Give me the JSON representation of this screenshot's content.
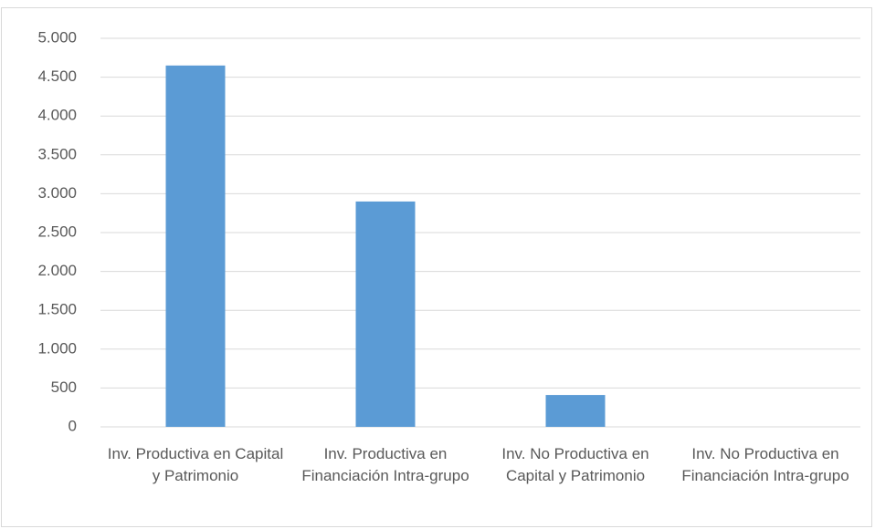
{
  "chart_data": {
    "type": "bar",
    "categories": [
      "Inv. Productiva en Capital y Patrimonio",
      "Inv. Productiva en Financiación Intra-grupo",
      "Inv. No Productiva en Capital y Patrimonio",
      "Inv. No Productiva en Financiación Intra-grupo"
    ],
    "values": [
      4650,
      2900,
      410,
      0
    ],
    "color": "#5b9bd5",
    "ylim": [
      0,
      5000
    ],
    "yticks": [
      0,
      500,
      {
        "value": 1000,
        "label": "1.000"
      },
      {
        "value": 1500,
        "label": "1.500"
      },
      {
        "value": 2000,
        "label": "2.000"
      },
      {
        "value": 2500,
        "label": "2.500"
      },
      {
        "value": 3000,
        "label": "3.000"
      },
      {
        "value": 3500,
        "label": "3.500"
      },
      {
        "value": 4000,
        "label": "4.000"
      },
      {
        "value": 4500,
        "label": "4.500"
      },
      {
        "value": 5000,
        "label": "5.000"
      }
    ],
    "grid": true
  }
}
